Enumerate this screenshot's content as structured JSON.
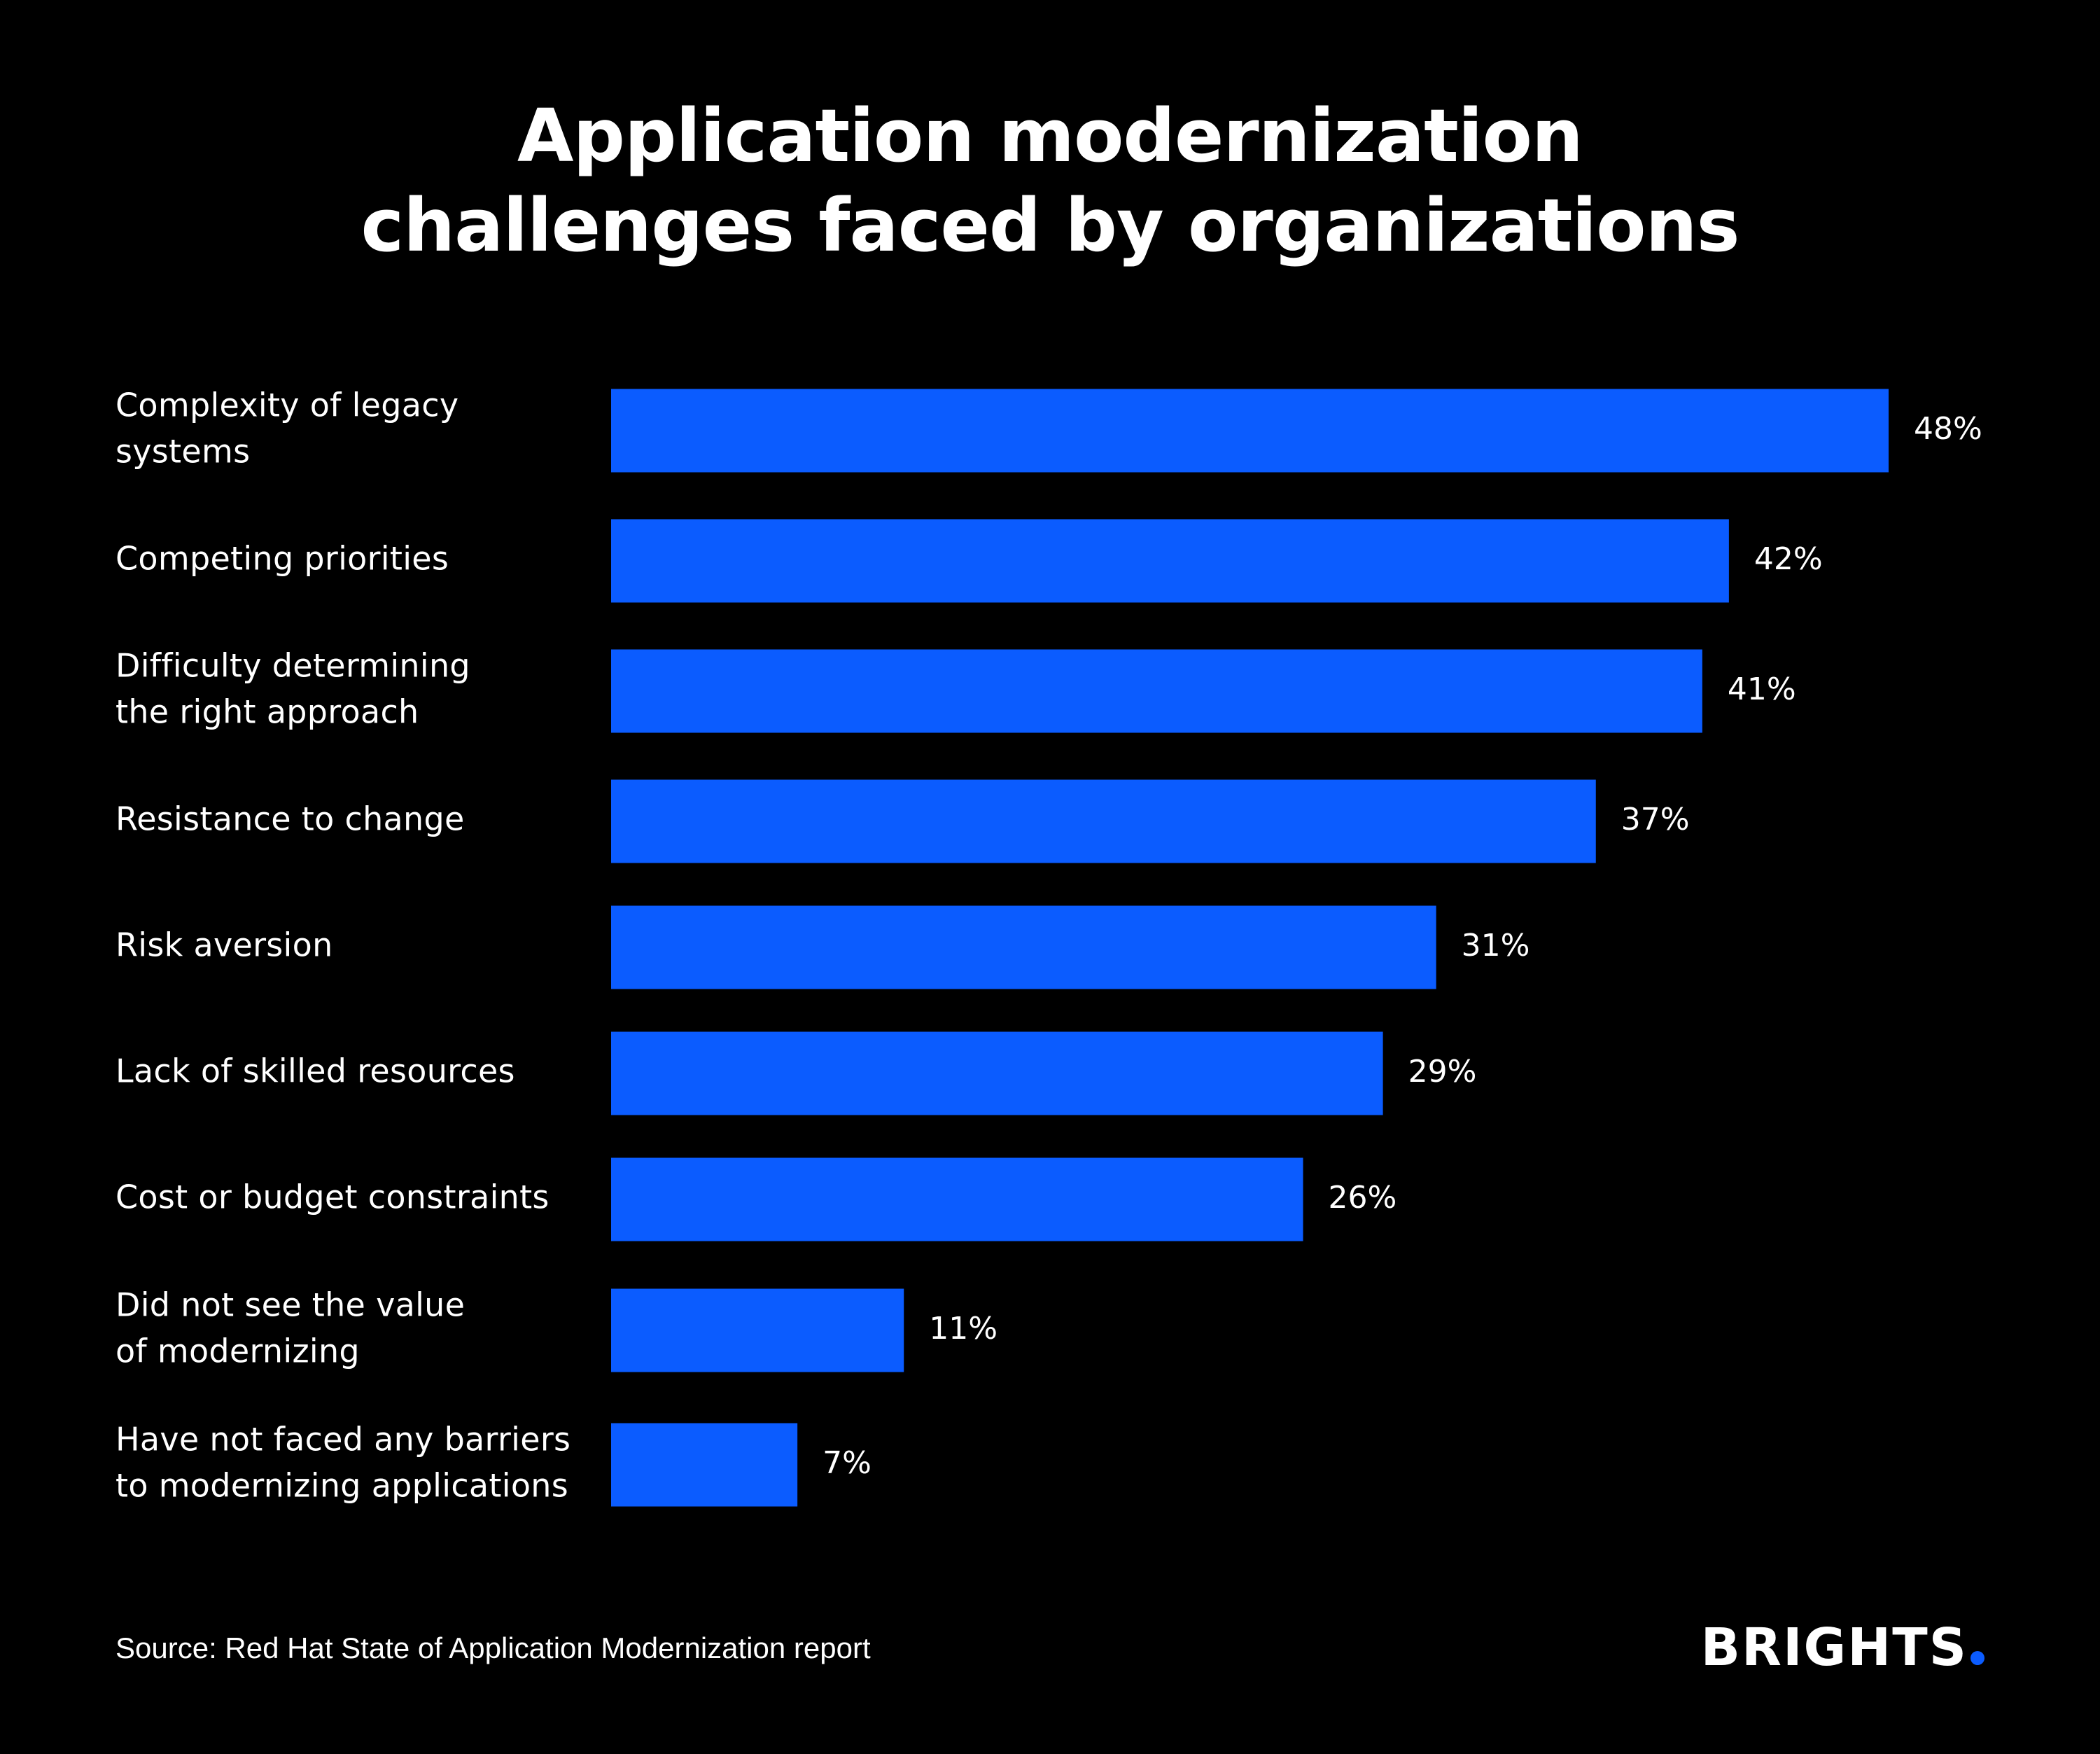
{
  "colors": {
    "background": "#000000",
    "bar": "#0b5cff",
    "text": "#ffffff",
    "brand_dot": "#0b5cff"
  },
  "header": {
    "title_line1": "Application modernization",
    "title_line2": "challenges faced by organizations"
  },
  "chart_data": {
    "type": "bar",
    "orientation": "horizontal",
    "categories": [
      [
        "Complexity of legacy",
        "systems"
      ],
      [
        "Competing priorities"
      ],
      [
        "Difficulty determining",
        "the right approach"
      ],
      [
        "Resistance to change"
      ],
      [
        "Risk aversion"
      ],
      [
        "Lack of skilled resources"
      ],
      [
        "Cost or budget constraints"
      ],
      [
        "Did not see the value",
        "of modernizing"
      ],
      [
        "Have not faced any barriers",
        "to modernizing applications"
      ]
    ],
    "values": [
      48,
      42,
      41,
      37,
      31,
      29,
      26,
      11,
      7
    ],
    "value_labels": [
      "48%",
      "42%",
      "41%",
      "37%",
      "31%",
      "29%",
      "26%",
      "11%",
      "7%"
    ],
    "xlim": [
      0,
      48
    ],
    "grid": false,
    "legend": "none"
  },
  "footer": {
    "source": "Source: Red Hat State of Application Modernization report",
    "logo_text": "BRIGHTS"
  }
}
